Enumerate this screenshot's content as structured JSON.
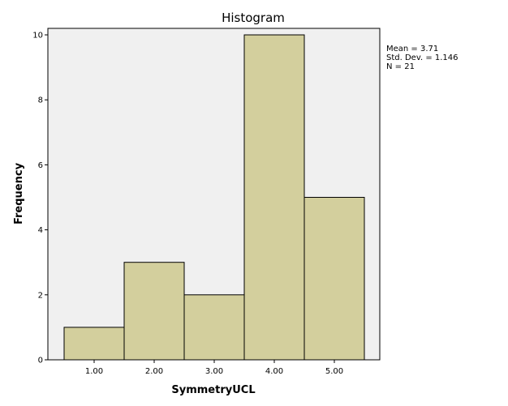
{
  "chart_data": {
    "type": "bar",
    "title": "Histogram",
    "xlabel": "SymmetryUCL",
    "ylabel": "Frequency",
    "categories": [
      "1.00",
      "2.00",
      "3.00",
      "4.00",
      "5.00"
    ],
    "values": [
      1,
      3,
      2,
      10,
      5
    ],
    "ylim": [
      0,
      10.2
    ],
    "yticks": [
      0,
      2,
      4,
      6,
      8,
      10
    ],
    "bar_color": "#d3cf9d",
    "plot_background": "#f0f0f0",
    "stats": [
      "Mean = 3.71",
      "Std. Dev. = 1.146",
      "N = 21"
    ],
    "grid": false,
    "legend": "none"
  }
}
